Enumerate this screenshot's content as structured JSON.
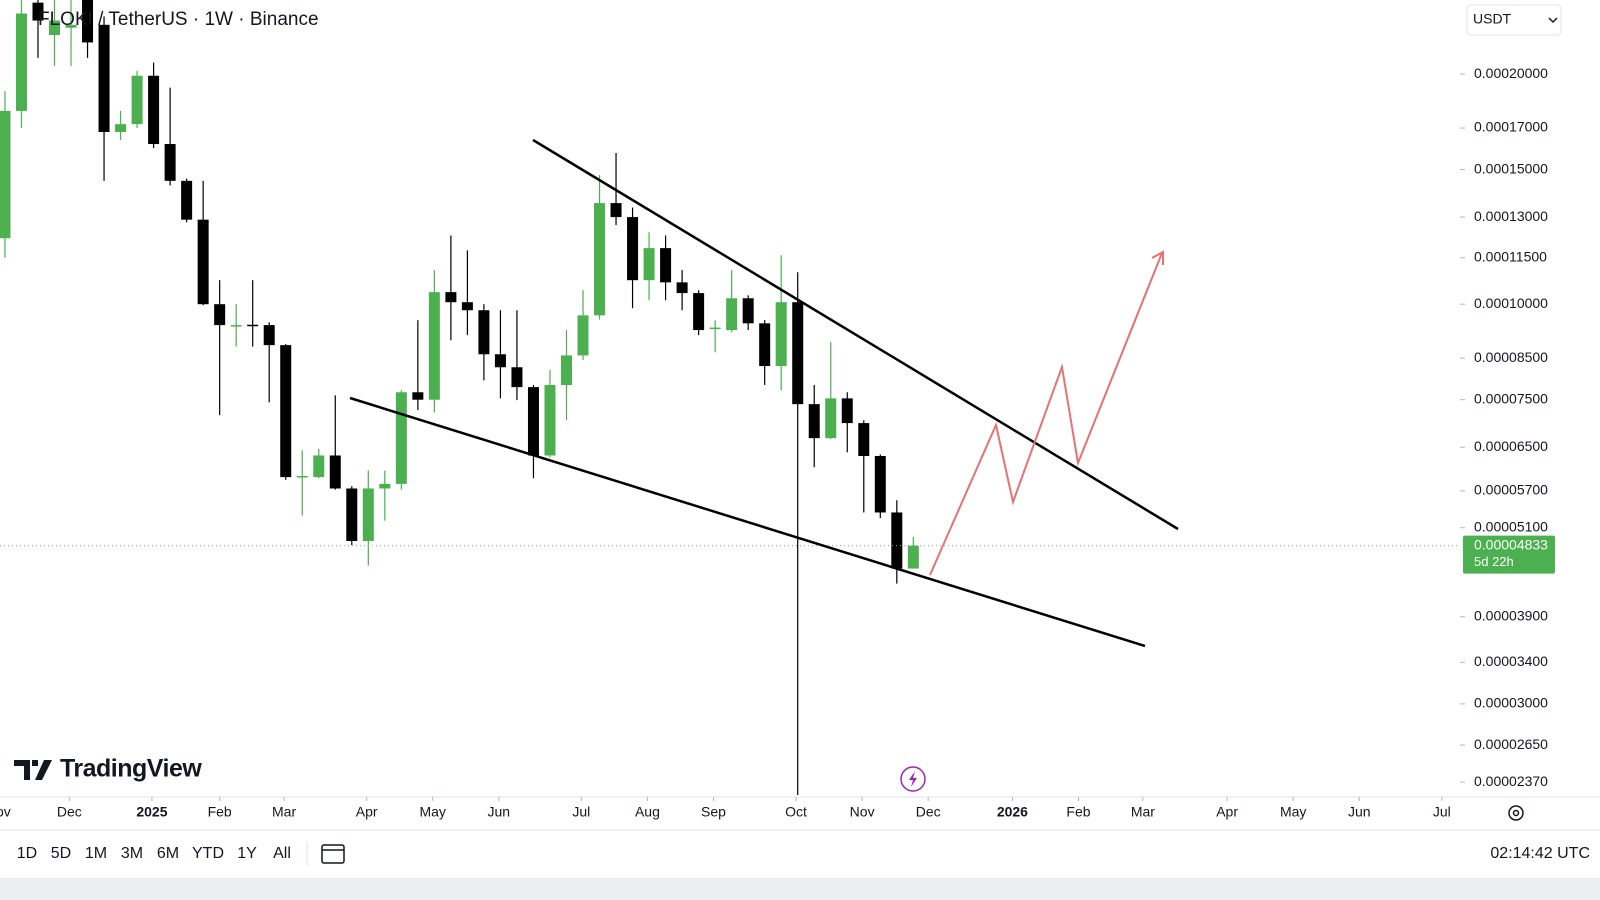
{
  "header": {
    "symbol": "FLOKI / TetherUS · 1W · Binance",
    "currency": "USDT"
  },
  "brand": "TradingView",
  "chart_data": {
    "type": "candlestick",
    "log_scale": true,
    "up_color": "#4caf50",
    "down_color": "#000000",
    "x": [
      0,
      1,
      2,
      3,
      4,
      5,
      6,
      7,
      8,
      9,
      10,
      11,
      12,
      13,
      14,
      15,
      16,
      17,
      18,
      19,
      20,
      21,
      22,
      23,
      24,
      25,
      26,
      27,
      28,
      29,
      30,
      31,
      32,
      33,
      34,
      35,
      36,
      37,
      38,
      39,
      40,
      41,
      42,
      43,
      44,
      45,
      46,
      47,
      48,
      49,
      50,
      51,
      52,
      53,
      54,
      55
    ],
    "open": [
      0.000122,
      0.000179,
      0.000248,
      0.000225,
      0.00023,
      0.00025,
      0.000232,
      0.000168,
      0.000172,
      0.000199,
      0.000162,
      0.000145,
      0.000129,
      0.0001,
      9.35e-05,
      9.4e-05,
      9.39e-05,
      8.84e-05,
      5.94e-05,
      5.94e-05,
      6.34e-05,
      5.74e-05,
      4.9e-05,
      5.74e-05,
      5.82e-05,
      7.67e-05,
      7.5e-05,
      0.0001037,
      0.0001006,
      9.82e-05,
      8.6e-05,
      8.27e-05,
      7.79e-05,
      6.34e-05,
      7.84e-05,
      8.57e-05,
      9.67e-05,
      0.0001356,
      0.00013,
      0.0001075,
      0.0001184,
      0.0001068,
      0.0001034,
      9.28e-05,
      9.25e-05,
      0.0001018,
      9.44e-05,
      8.3e-05,
      0.0001006,
      7.4e-05,
      6.68e-05,
      7.53e-05,
      6.99e-05,
      6.33e-05,
      5.34e-05,
      4.51e-05
    ],
    "high": [
      0.00019,
      0.00025,
      0.00025,
      0.00025,
      0.00025,
      0.00025,
      0.000238,
      0.000179,
      0.000202,
      0.000207,
      0.000192,
      0.000146,
      0.000145,
      0.0001075,
      0.0001,
      0.0001075,
      9.47e-05,
      8.87e-05,
      6.44e-05,
      6.47e-05,
      7.6e-05,
      5.78e-05,
      6.06e-05,
      6.06e-05,
      7.72e-05,
      9.53e-05,
      0.0001108,
      0.000123,
      0.0001176,
      0.0001,
      9.82e-05,
      9.82e-05,
      7.84e-05,
      8.2e-05,
      9.25e-05,
      0.0001043,
      0.0001475,
      0.0001577,
      0.0001338,
      0.0001242,
      0.000123,
      0.0001108,
      0.0001043,
      9.53e-05,
      0.0001108,
      0.0001027,
      9.53e-05,
      0.0001159,
      0.0001101,
      7.84e-05,
      8.92e-05,
      7.67e-05,
      7.05e-05,
      6.36e-05,
      5.54e-05,
      4.96e-05
    ],
    "low": [
      0.000115,
      0.00017,
      0.00021,
      0.000205,
      0.000205,
      0.00021,
      0.000145,
      0.000164,
      0.00017,
      0.00016,
      0.000143,
      0.000128,
      9.97e-05,
      7.16e-05,
      8.8e-05,
      8.8e-05,
      7.44e-05,
      5.89e-05,
      5.29e-05,
      5.92e-05,
      5.72e-05,
      4.84e-05,
      4.55e-05,
      5.21e-05,
      5.72e-05,
      7.27e-05,
      7.22e-05,
      8.97e-05,
      9.11e-05,
      7.95e-05,
      7.53e-05,
      7.49e-05,
      5.92e-05,
      6.3e-05,
      7.05e-05,
      8.45e-05,
      9.55e-05,
      0.0001269,
      9.88e-05,
      0.0001012,
      0.0001012,
      9.82e-05,
      9.11e-05,
      8.65e-05,
      9.19e-05,
      9.25e-05,
      7.84e-05,
      7.72e-05,
      2.28e-05,
      6.12e-05,
      6.66e-05,
      6.4e-05,
      5.34e-05,
      5.25e-05,
      4.31e-05,
      4.51e-05
    ],
    "close": [
      0.000179,
      0.00024,
      0.000235,
      0.000235,
      0.000232,
      0.00022,
      0.000168,
      0.000172,
      0.000199,
      0.000162,
      0.000145,
      0.000129,
      0.0001,
      9.39e-05,
      9.39e-05,
      9.37e-05,
      8.84e-05,
      5.94e-05,
      5.96e-05,
      6.34e-05,
      5.74e-05,
      4.9e-05,
      5.74e-05,
      5.82e-05,
      7.67e-05,
      7.5e-05,
      0.0001037,
      0.0001006,
      9.82e-05,
      8.6e-05,
      8.27e-05,
      7.79e-05,
      6.34e-05,
      7.84e-05,
      8.57e-05,
      9.67e-05,
      0.0001356,
      0.00013,
      0.0001075,
      0.0001184,
      0.0001068,
      0.0001034,
      9.25e-05,
      9.32e-05,
      0.0001018,
      9.44e-05,
      8.3e-05,
      0.0001006,
      7.4e-05,
      6.68e-05,
      7.53e-05,
      6.99e-05,
      6.33e-05,
      5.34e-05,
      4.51e-05,
      4.833e-05
    ],
    "xlim": [
      -0.3,
      88.1
    ],
    "xticks": [
      {
        "value": -0.4,
        "label": "Nov"
      },
      {
        "value": 3.9,
        "label": "Dec"
      },
      {
        "value": 8.9,
        "label": "2025"
      },
      {
        "value": 13.0,
        "label": "Feb"
      },
      {
        "value": 16.9,
        "label": "Mar"
      },
      {
        "value": 21.9,
        "label": "Apr"
      },
      {
        "value": 25.9,
        "label": "May"
      },
      {
        "value": 29.9,
        "label": "Jun"
      },
      {
        "value": 34.9,
        "label": "Jul"
      },
      {
        "value": 38.9,
        "label": "Aug"
      },
      {
        "value": 42.9,
        "label": "Sep"
      },
      {
        "value": 47.9,
        "label": "Oct"
      },
      {
        "value": 51.9,
        "label": "Nov"
      },
      {
        "value": 55.9,
        "label": "Dec"
      },
      {
        "value": 61.0,
        "label": "2026"
      },
      {
        "value": 65.0,
        "label": "Feb"
      },
      {
        "value": 68.9,
        "label": "Mar"
      },
      {
        "value": 74.0,
        "label": "Apr"
      },
      {
        "value": 78.0,
        "label": "May"
      },
      {
        "value": 82.0,
        "label": "Jun"
      },
      {
        "value": 87.0,
        "label": "Jul"
      }
    ],
    "ylim": [
      2.28e-05,
      0.00025
    ],
    "yticks": [
      {
        "value": 0.0002,
        "label": "0.00020000"
      },
      {
        "value": 0.00017,
        "label": "0.00017000"
      },
      {
        "value": 0.00015,
        "label": "0.00015000"
      },
      {
        "value": 0.00013,
        "label": "0.00013000"
      },
      {
        "value": 0.000115,
        "label": "0.00011500"
      },
      {
        "value": 0.0001,
        "label": "0.00010000"
      },
      {
        "value": 8.5e-05,
        "label": "0.00008500"
      },
      {
        "value": 7.5e-05,
        "label": "0.00007500"
      },
      {
        "value": 6.5e-05,
        "label": "0.00006500"
      },
      {
        "value": 5.7e-05,
        "label": "0.00005700"
      },
      {
        "value": 5.1e-05,
        "label": "0.00005100"
      },
      {
        "value": 3.9e-05,
        "label": "0.00003900"
      },
      {
        "value": 3.4e-05,
        "label": "0.00003400"
      },
      {
        "value": 3e-05,
        "label": "0.00003000"
      },
      {
        "value": 2.65e-05,
        "label": "0.00002650"
      },
      {
        "value": 2.37e-05,
        "label": "0.00002370"
      }
    ],
    "last_price": {
      "value": 4.833e-05,
      "label": "0.00004833",
      "countdown": "5d 22h"
    }
  },
  "toolbar": {
    "ranges": [
      "1D",
      "5D",
      "1M",
      "3M",
      "6M",
      "YTD",
      "1Y",
      "All"
    ],
    "time": "02:14:42 UTC"
  }
}
